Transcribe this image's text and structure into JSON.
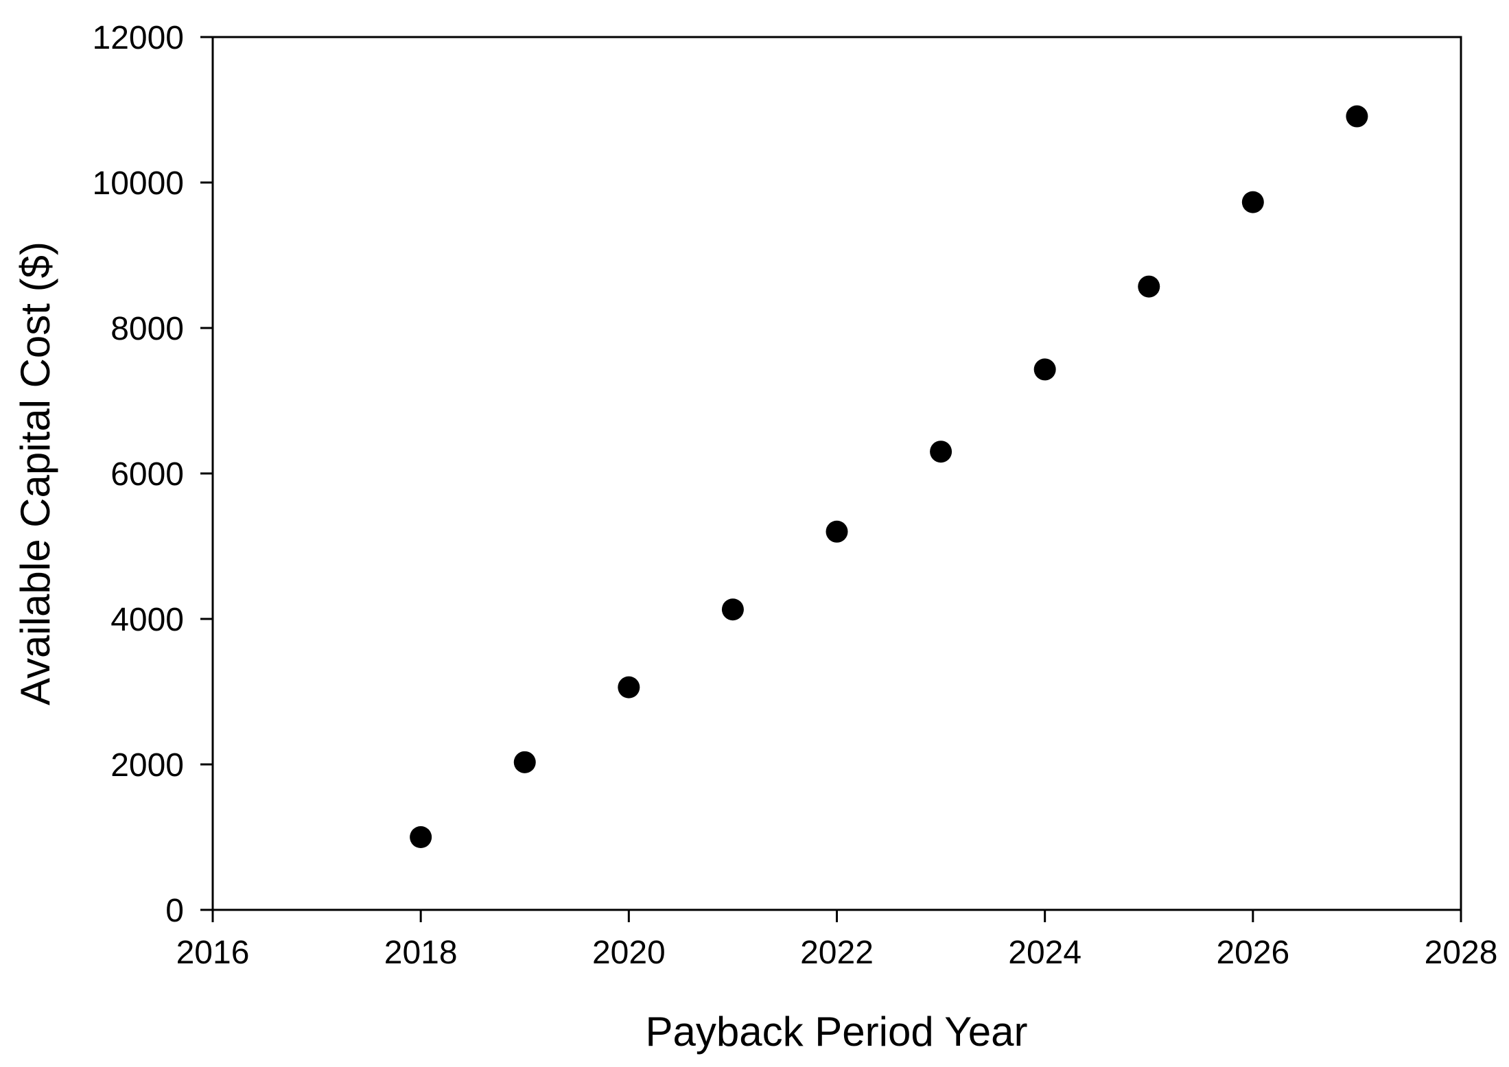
{
  "chart_data": {
    "type": "scatter",
    "title": "",
    "xlabel": "Payback Period Year",
    "ylabel": "Available Capital Cost ($)",
    "xlim": [
      2016,
      2028
    ],
    "ylim": [
      0,
      12000
    ],
    "xticks": [
      2016,
      2018,
      2020,
      2022,
      2024,
      2026,
      2028
    ],
    "yticks": [
      0,
      2000,
      4000,
      6000,
      8000,
      10000,
      12000
    ],
    "grid": false,
    "legend": "none",
    "series": [
      {
        "color": "#000000",
        "marker": "circle",
        "x": [
          2018,
          2019,
          2020,
          2021,
          2022,
          2023,
          2024,
          2025,
          2026,
          2027
        ],
        "y": [
          1000,
          2030,
          3060,
          4130,
          5200,
          6300,
          7430,
          8570,
          9730,
          10910
        ]
      }
    ]
  }
}
